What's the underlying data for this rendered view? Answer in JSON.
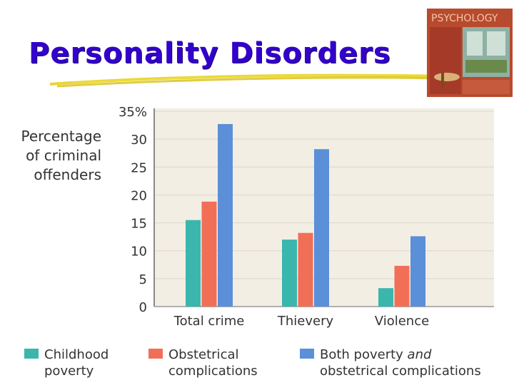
{
  "slide": {
    "title": "Personality Disorders",
    "book_cover_text": "PSYCHOLOGY"
  },
  "colors": {
    "title": "#3300cc",
    "underline": "#e6d21e",
    "plot_background": "#f3eee4",
    "grid": "#dcd6cc",
    "series": [
      "#3bb6ad",
      "#f26f57",
      "#5b8fd8"
    ]
  },
  "icons": {
    "book_cover": "psychology-textbook-cover"
  },
  "chart_data": {
    "type": "bar",
    "ylabel_lines": [
      "Percentage",
      "of criminal",
      "offenders"
    ],
    "categories": [
      "Total crime",
      "Thievery",
      "Violence"
    ],
    "ylim": [
      0,
      35
    ],
    "yticks": [
      "0",
      "5",
      "10",
      "15",
      "20",
      "25",
      "30",
      "35%"
    ],
    "grid": true,
    "legend_position": "bottom",
    "series": [
      {
        "name": "Childhood poverty",
        "name_lines": [
          "Childhood",
          "poverty"
        ],
        "values": [
          15.5,
          12,
          3.3
        ]
      },
      {
        "name": "Obstetrical complications",
        "name_lines": [
          "Obstetrical",
          "complications"
        ],
        "values": [
          18.8,
          13.2,
          7.3
        ]
      },
      {
        "name": "Both poverty and obstetrical complications",
        "name_lines": [
          "Both poverty and",
          "obstetrical complications"
        ],
        "values": [
          32.7,
          28.2,
          12.6
        ]
      }
    ]
  }
}
